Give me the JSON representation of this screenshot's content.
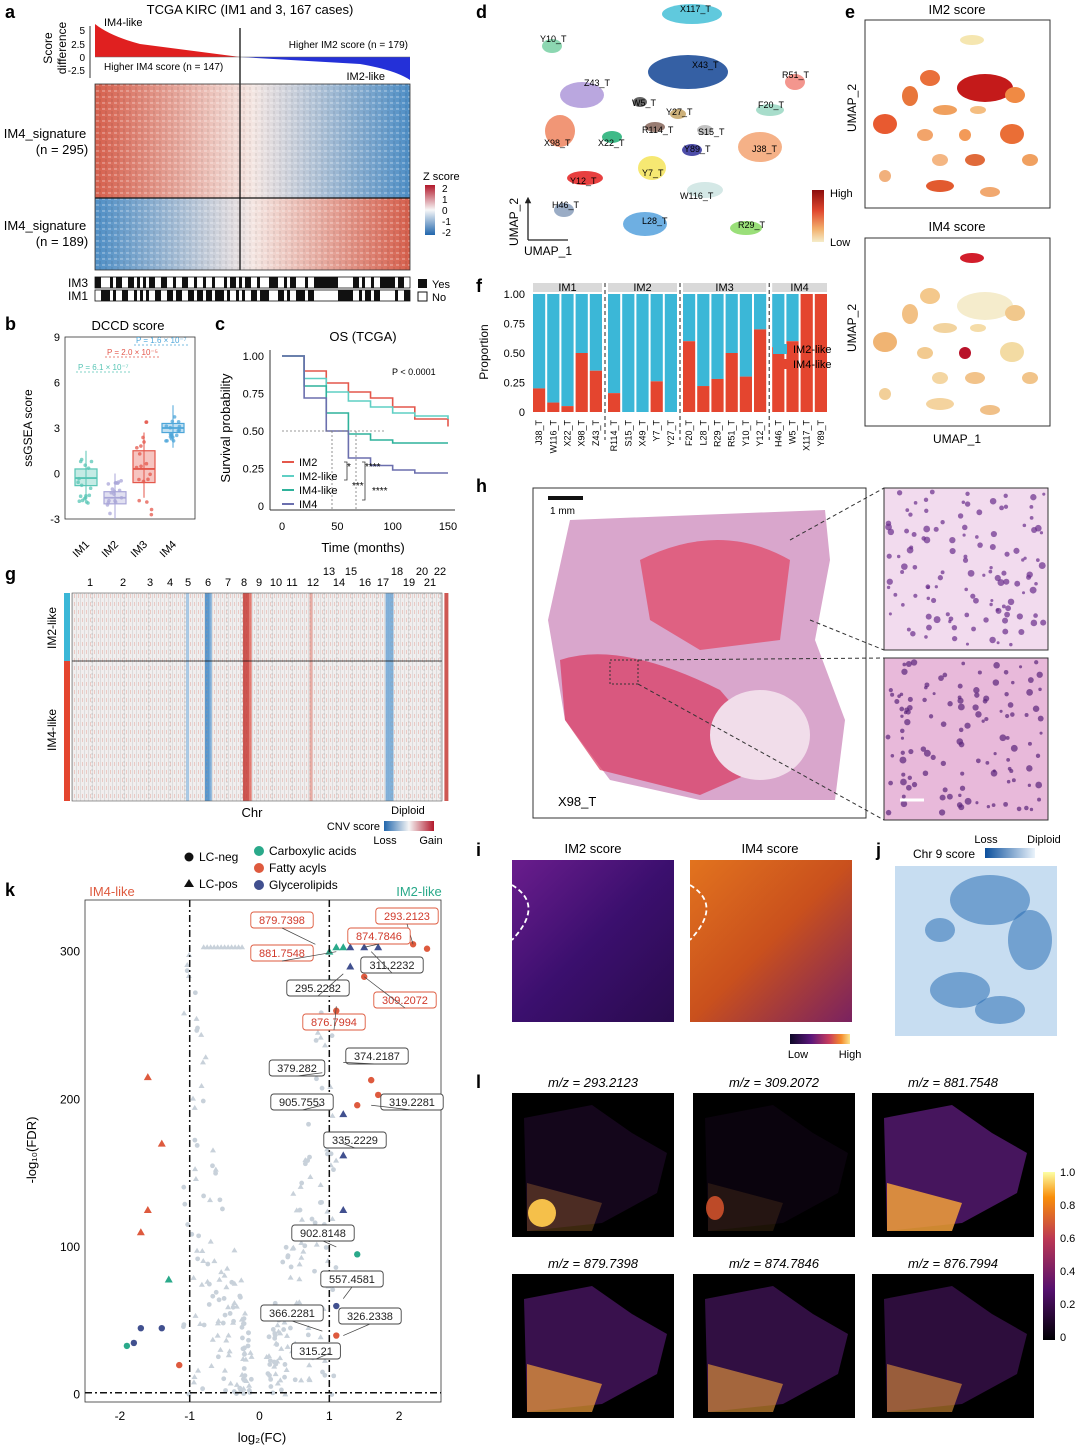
{
  "panel_letters": [
    "a",
    "b",
    "c",
    "d",
    "e",
    "f",
    "g",
    "h",
    "i",
    "j",
    "k",
    "l"
  ],
  "panel_a": {
    "title": "TCGA KIRC (IM1 and 3, 167 cases)",
    "ylabel_score": "Score\ndifference",
    "yticks": [
      "5",
      "2.5",
      "0",
      "-2.5"
    ],
    "im4_like": "IM4-like",
    "im2_like": "IM2-like",
    "higher_im2": "Higher IM2 score (n = 179)",
    "higher_im4": "Higher IM4 score (n = 147)",
    "sig_top": "IM4_signature",
    "sig_top_n": "(n = 295)",
    "sig_bottom": "IM4_signature",
    "sig_bottom_n": "(n = 189)",
    "zscore_title": "Z score",
    "zscore_ticks": [
      "2",
      "1",
      "0",
      "-1",
      "-2"
    ],
    "row_im3": "IM3",
    "row_im1": "IM1",
    "legend_yes": "Yes",
    "legend_no": "No"
  },
  "panel_b": {
    "chart_data": {
      "type": "box",
      "title": "DCCD score",
      "ylabel": "ssGSEA score",
      "categories": [
        "IM1",
        "IM2",
        "IM3",
        "IM4"
      ],
      "yticks": [
        "9",
        "6",
        "3",
        "0",
        "-3"
      ],
      "ylim": [
        -3,
        9
      ],
      "medians": [
        -0.3,
        -1.6,
        0.3,
        3.0
      ],
      "q1": [
        -0.8,
        -2.0,
        -0.6,
        2.7
      ],
      "q3": [
        0.3,
        -1.2,
        1.5,
        3.3
      ],
      "colors": [
        "#58c5b5",
        "#a9a6d8",
        "#e4574b",
        "#4da6d9"
      ],
      "pvalues": [
        "P = 6.1 × 10⁻⁷",
        "P = 2.0 × 10⁻⁵",
        "P = 1.6 × 10⁻⁷"
      ]
    }
  },
  "panel_c": {
    "chart_data": {
      "type": "line",
      "title": "OS (TCGA)",
      "xlabel": "Time (months)",
      "ylabel": "Survival probability",
      "xticks": [
        "0",
        "50",
        "100",
        "150"
      ],
      "yticks": [
        "1.00",
        "0.75",
        "0.50",
        "0.25",
        "0"
      ],
      "xlim": [
        0,
        150
      ],
      "ylim": [
        0,
        1
      ],
      "pvalue": "P < 0.0001",
      "series": [
        {
          "name": "IM2",
          "color": "#e4574b",
          "x": [
            0,
            20,
            40,
            60,
            80,
            100,
            120,
            150
          ],
          "y": [
            1.0,
            0.9,
            0.82,
            0.76,
            0.72,
            0.66,
            0.58,
            0.53
          ]
        },
        {
          "name": "IM2-like",
          "color": "#5fcfc4",
          "x": [
            0,
            20,
            40,
            60,
            80,
            100,
            120,
            150
          ],
          "y": [
            1.0,
            0.85,
            0.76,
            0.7,
            0.66,
            0.62,
            0.6,
            0.58
          ]
        },
        {
          "name": "IM4-like",
          "color": "#2fb29b",
          "x": [
            0,
            20,
            40,
            60,
            80,
            100,
            120,
            150
          ],
          "y": [
            1.0,
            0.8,
            0.62,
            0.48,
            0.44,
            0.42,
            0.42,
            0.42
          ]
        },
        {
          "name": "IM4",
          "color": "#6b6fae",
          "x": [
            0,
            20,
            40,
            60,
            80,
            100,
            120,
            150
          ],
          "y": [
            1.0,
            0.72,
            0.5,
            0.32,
            0.27,
            0.24,
            0.22,
            0.22
          ]
        }
      ],
      "sig_marks": [
        "*",
        "****",
        "***",
        "****"
      ]
    }
  },
  "panel_d": {
    "axis_x": "UMAP_1",
    "axis_y": "UMAP_2",
    "clusters": [
      "X117_T",
      "Y10_T",
      "X43_T",
      "Z43_T",
      "R51_T",
      "W5_T",
      "Y27_T",
      "F20_T",
      "R114_T",
      "S15_T",
      "X98_T",
      "X22_T",
      "Y89_T",
      "J38_T",
      "Y12_T",
      "Y7_T",
      "W116_T",
      "H46_T",
      "L28_T",
      "R29_T"
    ]
  },
  "panel_e": {
    "title_top": "IM2 score",
    "title_bottom": "IM4 score",
    "axis_x": "UMAP_1",
    "axis_y": "UMAP_2",
    "legend_high": "High",
    "legend_low": "Low"
  },
  "panel_f": {
    "chart_data": {
      "type": "bar",
      "ylabel": "Proportion",
      "yticks": [
        "1.00",
        "0.75",
        "0.50",
        "0.25",
        "0"
      ],
      "groups": [
        "IM1",
        "IM2",
        "IM3",
        "IM4"
      ],
      "categories": [
        "J38_T",
        "W116_T",
        "X22_T",
        "X98_T",
        "Z43_T",
        "R114_T",
        "S15_T",
        "X49_T",
        "Y7_T",
        "Y27_T",
        "F20_T",
        "L28_T",
        "R29_T",
        "R51_T",
        "Y10_T",
        "Y12_T",
        "H46_T",
        "W5_T",
        "X117_T",
        "Y89_T"
      ],
      "group_of": [
        0,
        0,
        0,
        0,
        0,
        1,
        1,
        1,
        1,
        1,
        2,
        2,
        2,
        2,
        2,
        2,
        3,
        3,
        3,
        3
      ],
      "series": [
        {
          "name": "IM2-like",
          "color": "#3bb7d7"
        },
        {
          "name": "IM4-like",
          "color": "#e4452f",
          "values": [
            0.2,
            0.08,
            0.05,
            0.5,
            0.35,
            0.16,
            0.0,
            0.0,
            0.26,
            0.0,
            0.6,
            0.22,
            0.28,
            0.5,
            0.3,
            0.7,
            0.55,
            0.6,
            1.0,
            1.0
          ]
        }
      ]
    }
  },
  "panel_g": {
    "chromosomes": [
      "1",
      "2",
      "3",
      "4",
      "5",
      "6",
      "7",
      "8",
      "9",
      "10",
      "11",
      "12",
      "13",
      "14",
      "15",
      "16",
      "17",
      "18",
      "19",
      "20",
      "21",
      "22"
    ],
    "row_top": "IM2-like",
    "row_bottom": "IM4-like",
    "xlabel": "Chr",
    "cnv_title": "CNV score",
    "diploid": "Diploid",
    "loss": "Loss",
    "gain": "Gain"
  },
  "panel_h": {
    "scale_label": "1 mm",
    "sample": "X98_T"
  },
  "panel_i": {
    "title_left": "IM2 score",
    "title_right": "IM4 score",
    "legend_low": "Low",
    "legend_high": "High"
  },
  "panel_j": {
    "title": "Chr 9 score",
    "loss": "Loss",
    "diploid": "Diploid"
  },
  "panel_k": {
    "chart_data": {
      "type": "scatter",
      "xlabel": "log₂(FC)",
      "ylabel": "-log₁₀(FDR)",
      "xticks": [
        "-2",
        "-1",
        "0",
        "1",
        "2"
      ],
      "yticks": [
        "300",
        "200",
        "100",
        "0"
      ],
      "xlim": [
        -2.5,
        2.6
      ],
      "ylim": [
        -5,
        335
      ],
      "side_left": "IM4-like",
      "side_right": "IM2-like",
      "legend": [
        {
          "name": "LC-neg",
          "shape": "circle"
        },
        {
          "name": "LC-pos",
          "shape": "triangle"
        },
        {
          "name": "Carboxylic acids",
          "color": "#2aa98a"
        },
        {
          "name": "Fatty acyls",
          "color": "#de5a3e"
        },
        {
          "name": "Glycerolipids",
          "color": "#41508f"
        }
      ],
      "labels": [
        {
          "text": "879.7398",
          "x": 0.8,
          "y": 305,
          "red": true
        },
        {
          "text": "293.2123",
          "x": 2.2,
          "y": 305,
          "red": true
        },
        {
          "text": "874.7846",
          "x": 1.5,
          "y": 303,
          "red": true
        },
        {
          "text": "881.7548",
          "x": 1.1,
          "y": 300,
          "red": true
        },
        {
          "text": "311.2232",
          "x": 1.6,
          "y": 300,
          "red": false
        },
        {
          "text": "295.2282",
          "x": 1.2,
          "y": 285,
          "red": false
        },
        {
          "text": "309.2072",
          "x": 1.5,
          "y": 283,
          "red": true
        },
        {
          "text": "876.7994",
          "x": 1.1,
          "y": 263,
          "red": true
        },
        {
          "text": "374.2187",
          "x": 1.2,
          "y": 225,
          "red": false
        },
        {
          "text": "379.282",
          "x": 0.9,
          "y": 218,
          "red": false
        },
        {
          "text": "905.7553",
          "x": 0.9,
          "y": 196,
          "red": false
        },
        {
          "text": "319.2281",
          "x": 1.6,
          "y": 196,
          "red": false
        },
        {
          "text": "335.2229",
          "x": 1.2,
          "y": 170,
          "red": false
        },
        {
          "text": "902.8148",
          "x": 1.1,
          "y": 100,
          "red": false
        },
        {
          "text": "557.4581",
          "x": 1.2,
          "y": 65,
          "red": false
        },
        {
          "text": "366.2281",
          "x": 0.9,
          "y": 43,
          "red": false
        },
        {
          "text": "326.2338",
          "x": 1.2,
          "y": 40,
          "red": false
        },
        {
          "text": "315.21",
          "x": 1.0,
          "y": 28,
          "red": false
        }
      ]
    }
  },
  "panel_l": {
    "images": [
      "m/z = 293.2123",
      "m/z = 309.2072",
      "m/z = 881.7548",
      "m/z = 879.7398",
      "m/z = 874.7846",
      "m/z = 876.7994"
    ],
    "colorbar_ticks": [
      "1.0",
      "0.8",
      "0.6",
      "0.4",
      "0.2",
      "0"
    ]
  }
}
